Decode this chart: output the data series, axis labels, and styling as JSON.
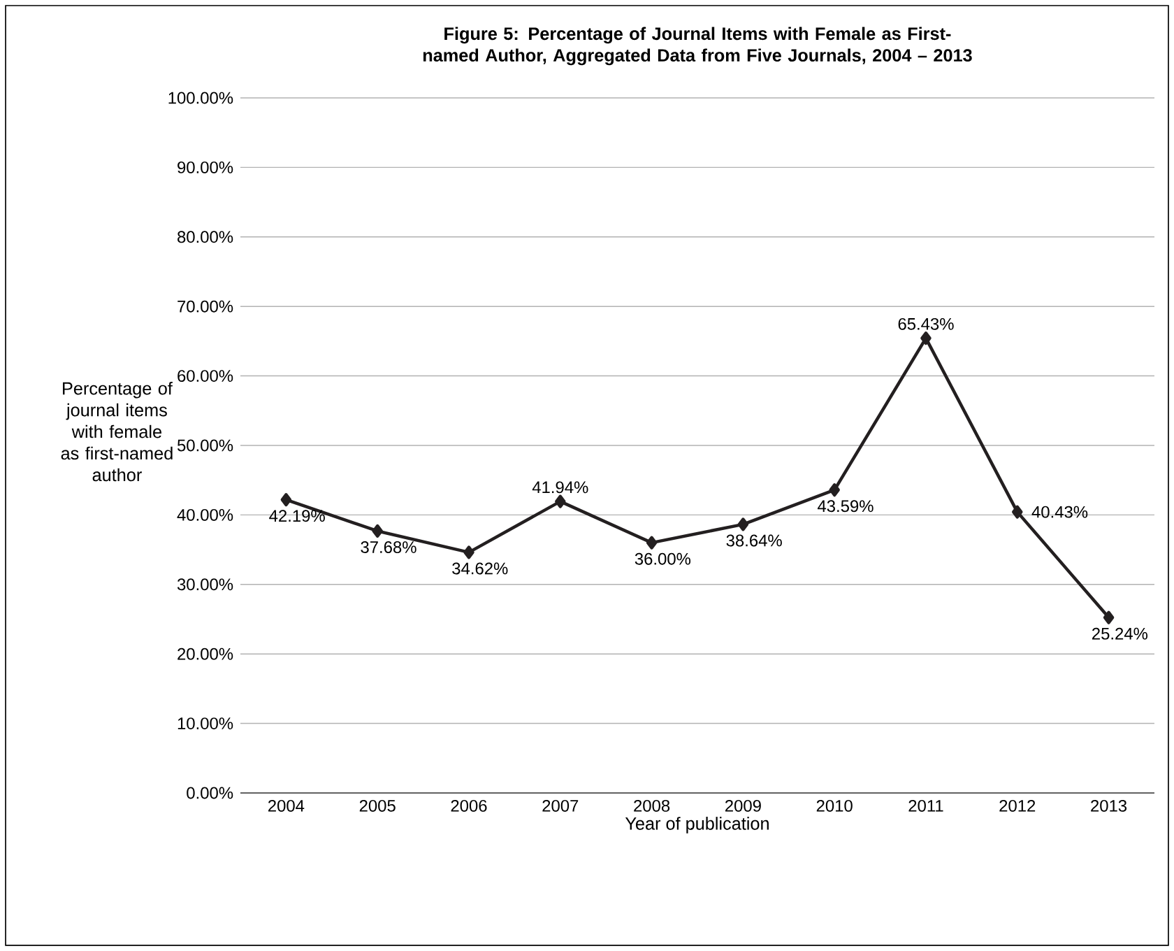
{
  "chart_data": {
    "type": "line",
    "title": "Figure 5:  Percentage of Journal Items with Female as First-named Author, Aggregated Data from Five Journals, 2004 – 2013",
    "xlabel": "Year of publication",
    "ylabel": "Percentage of journal items with female as first-named author",
    "categories": [
      "2004",
      "2005",
      "2006",
      "2007",
      "2008",
      "2009",
      "2010",
      "2011",
      "2012",
      "2013"
    ],
    "series": [
      {
        "color": "#231f20",
        "values": [
          42.19,
          37.68,
          34.62,
          41.94,
          36.0,
          38.64,
          43.59,
          65.43,
          40.43,
          25.24
        ]
      }
    ],
    "ylim": [
      0,
      100
    ],
    "yticks": [
      {
        "value": 0,
        "label": "0.00%"
      },
      {
        "value": 10,
        "label": "10.00%"
      },
      {
        "value": 20,
        "label": "20.00%"
      },
      {
        "value": 30,
        "label": "30.00%"
      },
      {
        "value": 40,
        "label": "40.00%"
      },
      {
        "value": 50,
        "label": "50.00%"
      },
      {
        "value": 60,
        "label": "60.00%"
      },
      {
        "value": 70,
        "label": "70.00%"
      },
      {
        "value": 80,
        "label": "80.00%"
      },
      {
        "value": 90,
        "label": "90.00%"
      },
      {
        "value": 100,
        "label": "100.00%"
      }
    ],
    "value_labels": [
      "42.19%",
      "37.68%",
      "34.62%",
      "41.94%",
      "36.00%",
      "38.64%",
      "43.59%",
      "65.43%",
      "40.43%",
      "25.24%"
    ],
    "grid": "y",
    "marker": "diamond",
    "line_style": "solid"
  }
}
